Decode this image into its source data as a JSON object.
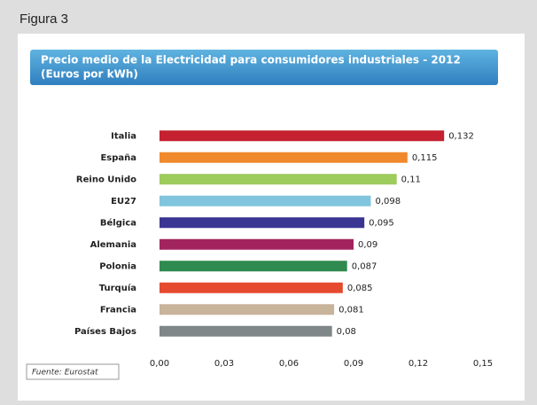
{
  "chart_data": {
    "type": "hbar",
    "figure_label": "Figura 3",
    "title": "Precio medio de la Electricidad para consumidores industriales - 2012",
    "subtitle": "(Euros por kWh)",
    "source": "Fuente: Eurostat",
    "categories": [
      "Italia",
      "España",
      "Reino Unido",
      "EU27",
      "Bélgica",
      "Alemania",
      "Polonia",
      "Turquía",
      "Francia",
      "Países Bajos"
    ],
    "values": [
      0.132,
      0.115,
      0.11,
      0.098,
      0.095,
      0.09,
      0.087,
      0.085,
      0.081,
      0.08
    ],
    "value_labels": [
      "0,132",
      "0,115",
      "0,11",
      "0,098",
      "0,095",
      "0,09",
      "0,087",
      "0,085",
      "0,081",
      "0,08"
    ],
    "colors": [
      "#c4202f",
      "#f0892c",
      "#9dcb5c",
      "#80c5dd",
      "#3a3592",
      "#a2245f",
      "#2f8a4f",
      "#e54a2f",
      "#c8b39b",
      "#7e8687"
    ],
    "xlim": [
      0,
      0.15
    ],
    "xticks": [
      {
        "value": 0,
        "label": "0,00"
      },
      {
        "value": 0.03,
        "label": "0,03"
      },
      {
        "value": 0.06,
        "label": "0,06"
      },
      {
        "value": 0.09,
        "label": "0,09"
      },
      {
        "value": 0.12,
        "label": "0,12"
      },
      {
        "value": 0.15,
        "label": "0,15"
      }
    ],
    "grid": false
  }
}
